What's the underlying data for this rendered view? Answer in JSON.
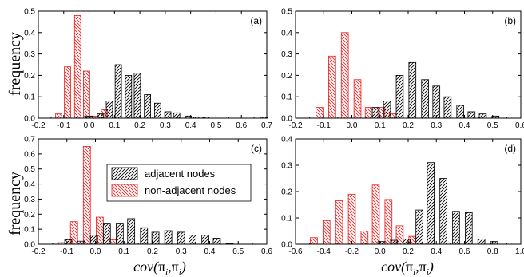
{
  "ylabel": "frequency",
  "xlabel": "cov(π_i,π_i)",
  "xlabel_parts": {
    "fn": "cov(",
    "a": "π",
    "a_sub": "i",
    "sep": ",",
    "b": "π",
    "b_sub": "i",
    "close": ")"
  },
  "legend": {
    "placement": "panel-c-top",
    "adjacent_label": "adjacent nodes",
    "nonadjacent_label": "non-adjacent nodes"
  },
  "colors": {
    "adjacent": "#000000",
    "nonadjacent": "#e8201f"
  },
  "chart_data": [
    {
      "type": "bar",
      "panel_label": "(a)",
      "xlim": [
        -0.2,
        0.7
      ],
      "ylim": [
        0,
        0.5
      ],
      "xticks": [
        "-0.2",
        "-0.1",
        "0.0",
        "0.1",
        "0.2",
        "0.3",
        "0.4",
        "0.5",
        "0.6",
        "0.7"
      ],
      "yticks": [
        "0.0",
        "0.1",
        "0.2",
        "0.3",
        "0.4",
        "0.5"
      ],
      "bin_width": 0.025,
      "series": [
        {
          "key": "nonadjacent",
          "x": [
            -0.12,
            -0.085,
            -0.045,
            -0.01,
            0.025,
            0.06
          ],
          "values": [
            0.02,
            0.24,
            0.48,
            0.22,
            0.01,
            0.04
          ]
        },
        {
          "key": "adjacent",
          "x": [
            0.0,
            0.045,
            0.08,
            0.115,
            0.155,
            0.19,
            0.23,
            0.27,
            0.31,
            0.345,
            0.39,
            0.425,
            0.46,
            0.69
          ],
          "values": [
            0.01,
            0.02,
            0.08,
            0.25,
            0.2,
            0.21,
            0.11,
            0.07,
            0.03,
            0.025,
            0.01,
            0.005,
            0.005,
            0.005
          ]
        }
      ]
    },
    {
      "type": "bar",
      "panel_label": "(b)",
      "xlim": [
        -0.2,
        0.6
      ],
      "ylim": [
        0,
        0.5
      ],
      "xticks": [
        "-0.2",
        "-0.1",
        "0.0",
        "0.1",
        "0.2",
        "0.3",
        "0.4",
        "0.5",
        "0.6"
      ],
      "yticks": [
        "0.0",
        "0.1",
        "0.2",
        "0.3",
        "0.4",
        "0.5"
      ],
      "bin_width": 0.025,
      "series": [
        {
          "key": "nonadjacent",
          "x": [
            -0.115,
            -0.07,
            -0.025,
            0.02,
            0.06,
            0.105,
            0.145
          ],
          "values": [
            0.05,
            0.29,
            0.4,
            0.18,
            0.05,
            0.05,
            0.02
          ]
        },
        {
          "key": "adjacent",
          "x": [
            0.085,
            0.125,
            0.17,
            0.215,
            0.26,
            0.3,
            0.34,
            0.385,
            0.425,
            0.465,
            0.51
          ],
          "values": [
            0.05,
            0.08,
            0.2,
            0.26,
            0.18,
            0.15,
            0.1,
            0.06,
            0.03,
            0.02,
            0.01
          ]
        }
      ]
    },
    {
      "type": "bar",
      "panel_label": "(c)",
      "xlim": [
        -0.2,
        0.6
      ],
      "ylim": [
        0,
        0.7
      ],
      "xticks": [
        "-0.2",
        "-0.1",
        "0.0",
        "0.1",
        "0.2",
        "0.3",
        "0.4",
        "0.5",
        "0.6"
      ],
      "yticks": [
        "0.0",
        "0.1",
        "0.2",
        "0.3",
        "0.4",
        "0.5",
        "0.6",
        "0.7"
      ],
      "bin_width": 0.025,
      "series": [
        {
          "key": "nonadjacent",
          "x": [
            -0.12,
            -0.075,
            -0.03,
            0.015,
            0.06
          ],
          "values": [
            0.01,
            0.15,
            0.65,
            0.18,
            0.03
          ]
        },
        {
          "key": "adjacent",
          "x": [
            -0.095,
            -0.05,
            -0.005,
            0.04,
            0.085,
            0.125,
            0.17,
            0.21,
            0.255,
            0.3,
            0.34,
            0.385,
            0.425,
            0.47
          ],
          "values": [
            0.03,
            0.02,
            0.06,
            0.14,
            0.14,
            0.17,
            0.11,
            0.08,
            0.09,
            0.08,
            0.06,
            0.06,
            0.04,
            0.005
          ]
        }
      ]
    },
    {
      "type": "bar",
      "panel_label": "(d)",
      "xlim": [
        -0.6,
        1.0
      ],
      "ylim": [
        0,
        0.4
      ],
      "xticks": [
        "-0.6",
        "-0.4",
        "-0.2",
        "0.0",
        "0.2",
        "0.4",
        "0.6",
        "0.8",
        "1.0"
      ],
      "yticks": [
        "0.0",
        "0.1",
        "0.2",
        "0.3",
        "0.4"
      ],
      "bin_width": 0.05,
      "series": [
        {
          "key": "nonadjacent",
          "x": [
            -0.47,
            -0.38,
            -0.29,
            -0.2,
            -0.11,
            -0.03,
            0.06,
            0.14,
            0.23,
            0.32
          ],
          "values": [
            0.025,
            0.09,
            0.165,
            0.19,
            0.05,
            0.225,
            0.17,
            0.07,
            0.03,
            0.005
          ]
        },
        {
          "key": "adjacent",
          "x": [
            0.01,
            0.1,
            0.19,
            0.28,
            0.36,
            0.45,
            0.54,
            0.63,
            0.72,
            0.81
          ],
          "values": [
            0.01,
            0.015,
            0.02,
            0.13,
            0.31,
            0.25,
            0.125,
            0.12,
            0.02,
            0.01
          ]
        }
      ]
    }
  ]
}
